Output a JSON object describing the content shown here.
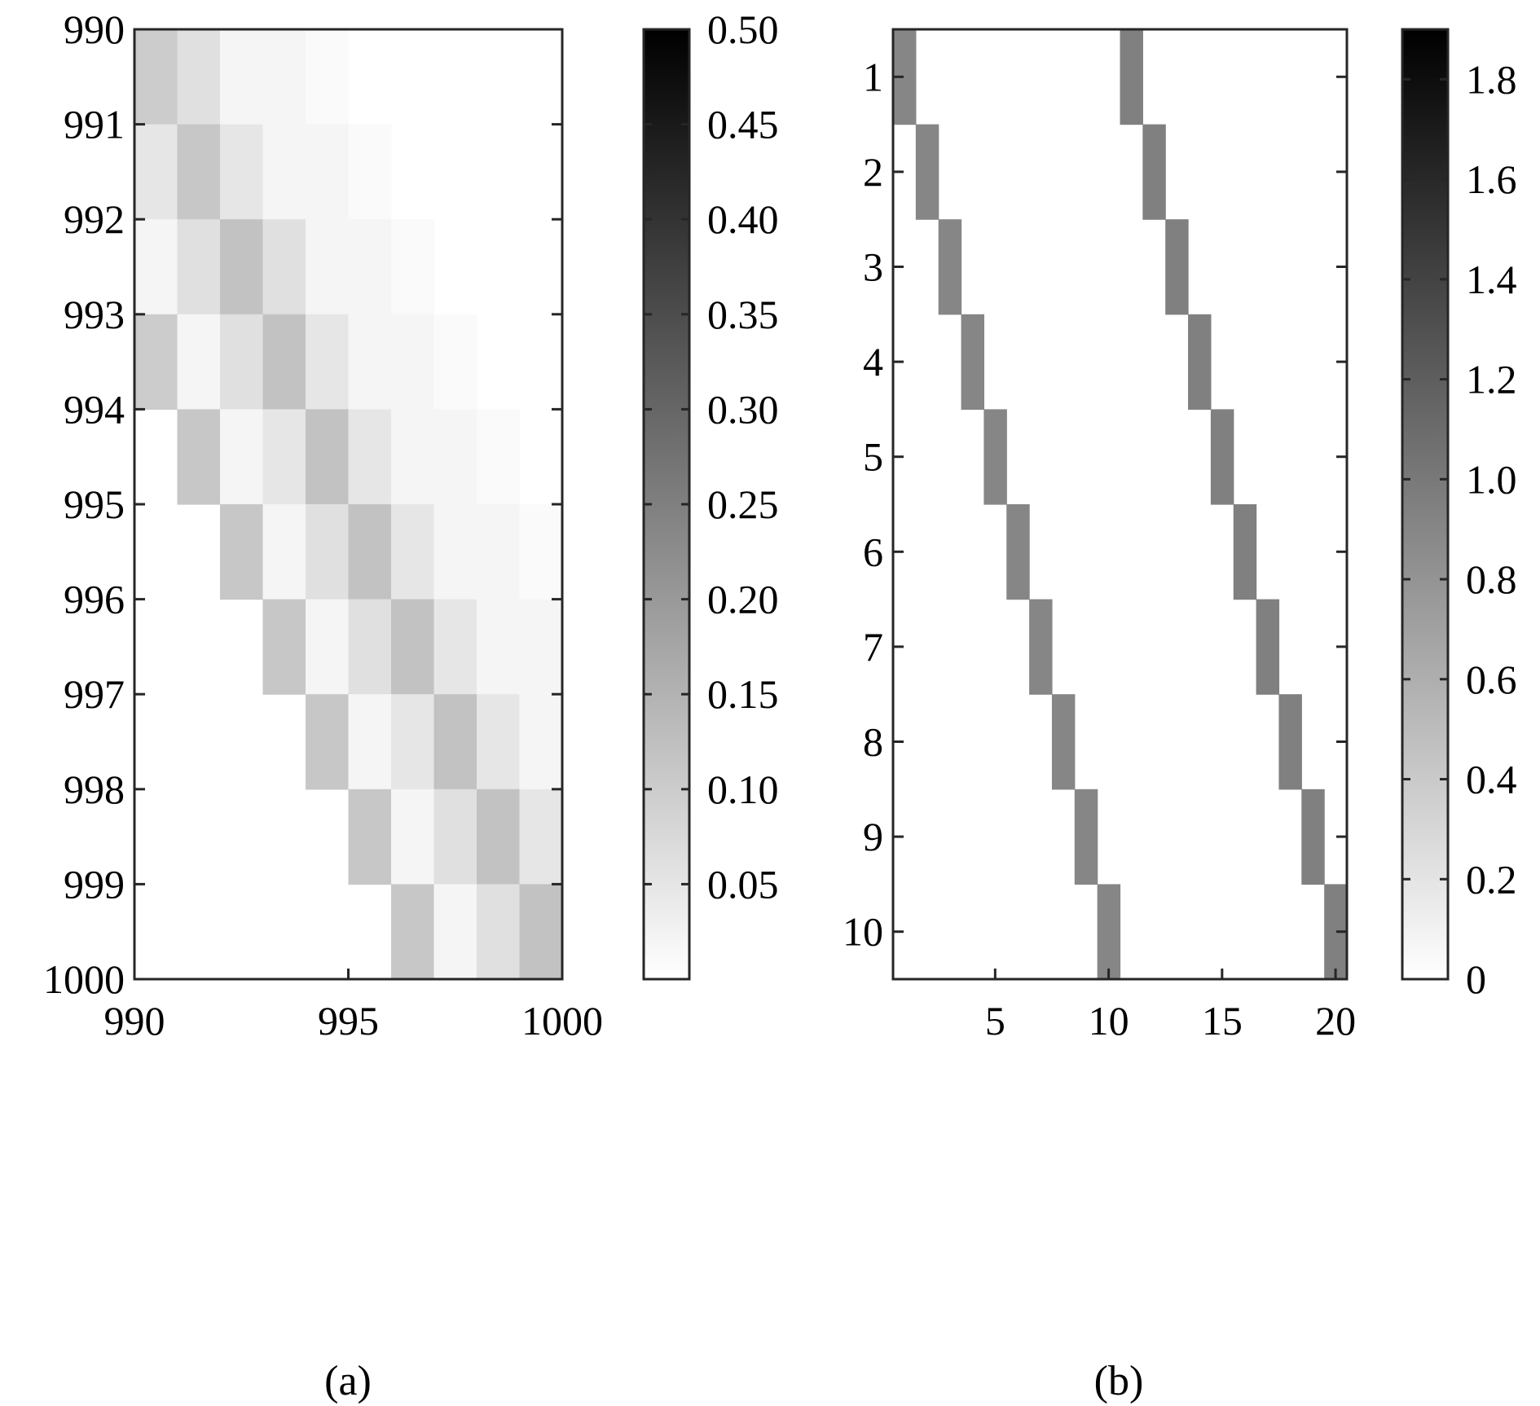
{
  "chart_data": [
    {
      "type": "heatmap",
      "caption": "(a)",
      "x_ticks": [
        "990",
        "995",
        "1000"
      ],
      "y_ticks": [
        "990",
        "991",
        "992",
        "993",
        "994",
        "995",
        "996",
        "997",
        "998",
        "999",
        "1000"
      ],
      "x_range": [
        990,
        1000
      ],
      "y_range": [
        990,
        1000
      ],
      "colormap": "gray-reversed",
      "colorbar": {
        "range": [
          0,
          0.5
        ],
        "ticks": [
          "0.05",
          "0.10",
          "0.15",
          "0.20",
          "0.25",
          "0.30",
          "0.35",
          "0.40",
          "0.45",
          "0.50"
        ]
      },
      "values": [
        [
          0.1,
          0.06,
          0.02,
          0.02,
          0.01,
          0,
          0,
          0,
          0,
          0
        ],
        [
          0.05,
          0.11,
          0.05,
          0.02,
          0.02,
          0.01,
          0,
          0,
          0,
          0
        ],
        [
          0.02,
          0.06,
          0.12,
          0.06,
          0.02,
          0.02,
          0.01,
          0,
          0,
          0
        ],
        [
          0.1,
          0.02,
          0.06,
          0.12,
          0.05,
          0.02,
          0.02,
          0.01,
          0,
          0
        ],
        [
          0,
          0.11,
          0.02,
          0.05,
          0.12,
          0.05,
          0.02,
          0.02,
          0.01,
          0
        ],
        [
          0,
          0,
          0.11,
          0.02,
          0.06,
          0.12,
          0.05,
          0.02,
          0.02,
          0.01
        ],
        [
          0,
          0,
          0,
          0.11,
          0.02,
          0.06,
          0.12,
          0.05,
          0.02,
          0.02
        ],
        [
          0,
          0,
          0,
          0,
          0.11,
          0.02,
          0.05,
          0.12,
          0.05,
          0.02
        ],
        [
          0,
          0,
          0,
          0,
          0,
          0.11,
          0.02,
          0.06,
          0.12,
          0.05
        ],
        [
          0,
          0,
          0,
          0,
          0,
          0,
          0.11,
          0.02,
          0.06,
          0.12
        ]
      ]
    },
    {
      "type": "heatmap",
      "caption": "(b)",
      "x_ticks": [
        "5",
        "10",
        "15",
        "20"
      ],
      "y_ticks": [
        "1",
        "2",
        "3",
        "4",
        "5",
        "6",
        "7",
        "8",
        "9",
        "10"
      ],
      "x_range": [
        0.5,
        20.5
      ],
      "y_range": [
        0.5,
        10.5
      ],
      "colormap": "gray-reversed",
      "colorbar": {
        "range": [
          0,
          1.9
        ],
        "ticks": [
          "0",
          "0.2",
          "0.4",
          "0.6",
          "0.8",
          "1.0",
          "1.2",
          "1.4",
          "1.6",
          "1.8"
        ]
      },
      "cells": [
        {
          "row": 1,
          "col": 1,
          "value": 0.9
        },
        {
          "row": 1,
          "col": 11,
          "value": 0.95
        },
        {
          "row": 2,
          "col": 2,
          "value": 0.9
        },
        {
          "row": 2,
          "col": 12,
          "value": 0.95
        },
        {
          "row": 3,
          "col": 3,
          "value": 0.9
        },
        {
          "row": 3,
          "col": 13,
          "value": 0.95
        },
        {
          "row": 4,
          "col": 4,
          "value": 0.9
        },
        {
          "row": 4,
          "col": 14,
          "value": 0.95
        },
        {
          "row": 5,
          "col": 5,
          "value": 0.9
        },
        {
          "row": 5,
          "col": 15,
          "value": 0.95
        },
        {
          "row": 6,
          "col": 6,
          "value": 0.9
        },
        {
          "row": 6,
          "col": 16,
          "value": 0.95
        },
        {
          "row": 7,
          "col": 7,
          "value": 0.9
        },
        {
          "row": 7,
          "col": 17,
          "value": 0.95
        },
        {
          "row": 8,
          "col": 8,
          "value": 0.9
        },
        {
          "row": 8,
          "col": 18,
          "value": 0.95
        },
        {
          "row": 9,
          "col": 9,
          "value": 0.9
        },
        {
          "row": 9,
          "col": 19,
          "value": 0.95
        },
        {
          "row": 10,
          "col": 10,
          "value": 0.9
        },
        {
          "row": 10,
          "col": 20,
          "value": 0.95
        }
      ]
    }
  ]
}
